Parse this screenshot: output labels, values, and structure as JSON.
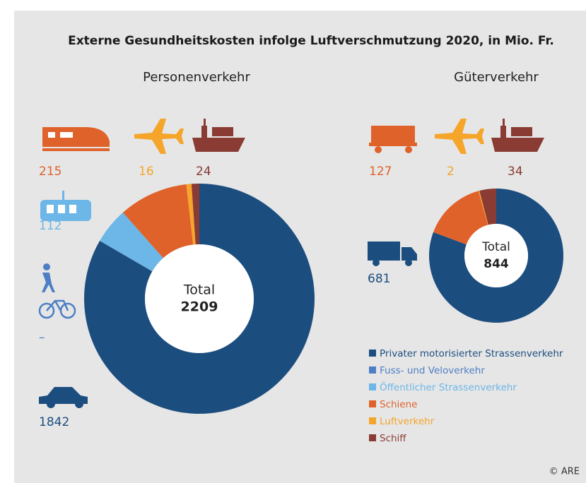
{
  "title": "Externe Gesundheitskosten infolge Luftverschmutzung 2020, in Mio. Fr.",
  "credit": "© ARE",
  "chart_data": [
    {
      "type": "donut",
      "title": "Personenverkehr",
      "center_label": "Total",
      "total": 2209,
      "categories": [
        "Privater motorisierter Strassenverkehr",
        "Fuss- und Veloverkehr",
        "Öffentlicher Strassenverkehr",
        "Schiene",
        "Luftverkehr",
        "Schiff"
      ],
      "colors": [
        "#1c4d7f",
        "#4d7fc4",
        "#6cb6e8",
        "#e0622b",
        "#f5a52a",
        "#8a3b33"
      ],
      "values": [
        1842,
        0,
        112,
        215,
        16,
        24
      ],
      "value_labels": [
        "1842",
        "–",
        "112",
        "215",
        "16",
        "24"
      ]
    },
    {
      "type": "donut",
      "title": "Güterverkehr",
      "center_label": "Total",
      "total": 844,
      "values": [
        681,
        null,
        null,
        127,
        2,
        34
      ]
    }
  ]
}
